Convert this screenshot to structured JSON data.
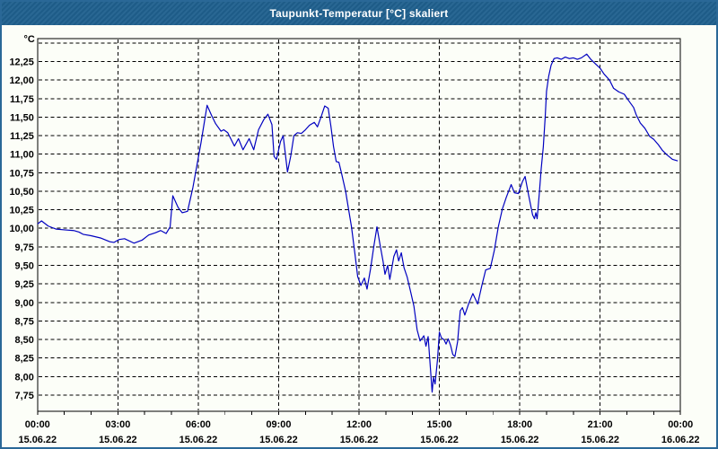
{
  "window": {
    "title": "Taupunkt-Temperatur [°C] skaliert"
  },
  "colors": {
    "title_bar_bg": "#20618F",
    "title_text": "#FFFFFF",
    "page_bg": "#FCFEF8",
    "outer_border": "#2A6897",
    "grid": "#000000",
    "frame": "#000000",
    "line": "#0000C0",
    "tick_text": "#000000"
  },
  "chart_data": {
    "type": "line",
    "title": "Taupunkt-Temperatur [°C] skaliert",
    "unit_label": "°C",
    "grid": "dashed",
    "legend": "none",
    "x_unit": "hours",
    "x_range": [
      0,
      24
    ],
    "y_range": [
      7.53,
      12.56
    ],
    "y_gridline_values": [
      12.5,
      12.25,
      12.0,
      11.75,
      11.5,
      11.25,
      11.0,
      10.75,
      10.5,
      10.25,
      10.0,
      9.75,
      9.5,
      9.25,
      9.0,
      8.75,
      8.5,
      8.25,
      8.0,
      7.75
    ],
    "y_tick_labels": [
      {
        "value": 12.25,
        "label": "12,25"
      },
      {
        "value": 12.0,
        "label": "12,00"
      },
      {
        "value": 11.75,
        "label": "11,75"
      },
      {
        "value": 11.5,
        "label": "11,50"
      },
      {
        "value": 11.25,
        "label": "11,25"
      },
      {
        "value": 11.0,
        "label": "11,00"
      },
      {
        "value": 10.75,
        "label": "10,75"
      },
      {
        "value": 10.5,
        "label": "10,50"
      },
      {
        "value": 10.25,
        "label": "10,25"
      },
      {
        "value": 10.0,
        "label": "10,00"
      },
      {
        "value": 9.75,
        "label": "9,75"
      },
      {
        "value": 9.5,
        "label": "9,50"
      },
      {
        "value": 9.25,
        "label": "9,25"
      },
      {
        "value": 9.0,
        "label": "9,00"
      },
      {
        "value": 8.75,
        "label": "8,75"
      },
      {
        "value": 8.5,
        "label": "8,50"
      },
      {
        "value": 8.25,
        "label": "8,25"
      },
      {
        "value": 8.0,
        "label": "8,00"
      },
      {
        "value": 7.75,
        "label": "7,75"
      }
    ],
    "x_major_gridlines_hours": [
      3,
      6,
      9,
      12,
      15,
      18,
      21
    ],
    "x_minor_tick_every_hours": 1,
    "x_tick_labels": [
      {
        "t": 0,
        "time": "00:00",
        "date": "15.06.22"
      },
      {
        "t": 3,
        "time": "03:00",
        "date": "15.06.22"
      },
      {
        "t": 6,
        "time": "06:00",
        "date": "15.06.22"
      },
      {
        "t": 9,
        "time": "09:00",
        "date": "15.06.22"
      },
      {
        "t": 12,
        "time": "12:00",
        "date": "15.06.22"
      },
      {
        "t": 15,
        "time": "15:00",
        "date": "15.06.22"
      },
      {
        "t": 18,
        "time": "18:00",
        "date": "15.06.22"
      },
      {
        "t": 21,
        "time": "21:00",
        "date": "15.06.22"
      },
      {
        "t": 24,
        "time": "00:00",
        "date": "16.06.22"
      }
    ],
    "series": [
      {
        "name": "Taupunkt-Temperatur",
        "color": "#0000C0",
        "points": [
          [
            0,
            10.06
          ],
          [
            0.15,
            10.1
          ],
          [
            0.4,
            10.03
          ],
          [
            0.7,
            9.99
          ],
          [
            1,
            9.98
          ],
          [
            1.35,
            9.97
          ],
          [
            1.55,
            9.95
          ],
          [
            1.7,
            9.92
          ],
          [
            2,
            9.9
          ],
          [
            2.35,
            9.87
          ],
          [
            2.7,
            9.82
          ],
          [
            2.85,
            9.81
          ],
          [
            3.05,
            9.85
          ],
          [
            3.25,
            9.86
          ],
          [
            3.6,
            9.8
          ],
          [
            3.9,
            9.84
          ],
          [
            4.15,
            9.91
          ],
          [
            4.4,
            9.94
          ],
          [
            4.6,
            9.97
          ],
          [
            4.8,
            9.93
          ],
          [
            4.95,
            10.02
          ],
          [
            5.05,
            10.44
          ],
          [
            5.25,
            10.28
          ],
          [
            5.4,
            10.21
          ],
          [
            5.6,
            10.23
          ],
          [
            5.8,
            10.55
          ],
          [
            5.95,
            10.85
          ],
          [
            6.1,
            11.15
          ],
          [
            6.33,
            11.66
          ],
          [
            6.5,
            11.52
          ],
          [
            6.65,
            11.41
          ],
          [
            6.85,
            11.31
          ],
          [
            6.95,
            11.33
          ],
          [
            7.1,
            11.29
          ],
          [
            7.35,
            11.11
          ],
          [
            7.5,
            11.21
          ],
          [
            7.67,
            11.06
          ],
          [
            7.9,
            11.21
          ],
          [
            8.07,
            11.06
          ],
          [
            8.25,
            11.33
          ],
          [
            8.45,
            11.47
          ],
          [
            8.6,
            11.54
          ],
          [
            8.75,
            11.4
          ],
          [
            8.83,
            10.97
          ],
          [
            8.92,
            10.93
          ],
          [
            9.07,
            11.17
          ],
          [
            9.17,
            11.25
          ],
          [
            9.33,
            10.76
          ],
          [
            9.45,
            10.97
          ],
          [
            9.57,
            11.25
          ],
          [
            9.7,
            11.29
          ],
          [
            9.85,
            11.28
          ],
          [
            10,
            11.33
          ],
          [
            10.15,
            11.39
          ],
          [
            10.33,
            11.43
          ],
          [
            10.45,
            11.37
          ],
          [
            10.6,
            11.52
          ],
          [
            10.72,
            11.65
          ],
          [
            10.85,
            11.62
          ],
          [
            10.95,
            11.38
          ],
          [
            11.05,
            11.1
          ],
          [
            11.15,
            10.9
          ],
          [
            11.25,
            10.89
          ],
          [
            11.35,
            10.74
          ],
          [
            11.5,
            10.5
          ],
          [
            11.6,
            10.28
          ],
          [
            11.72,
            10.02
          ],
          [
            11.85,
            9.65
          ],
          [
            11.95,
            9.35
          ],
          [
            12.07,
            9.23
          ],
          [
            12.2,
            9.33
          ],
          [
            12.3,
            9.18
          ],
          [
            12.43,
            9.45
          ],
          [
            12.55,
            9.75
          ],
          [
            12.67,
            10.02
          ],
          [
            12.78,
            9.79
          ],
          [
            12.9,
            9.55
          ],
          [
            12.97,
            9.38
          ],
          [
            13.07,
            9.5
          ],
          [
            13.15,
            9.31
          ],
          [
            13.3,
            9.62
          ],
          [
            13.4,
            9.71
          ],
          [
            13.48,
            9.56
          ],
          [
            13.58,
            9.67
          ],
          [
            13.68,
            9.47
          ],
          [
            13.8,
            9.34
          ],
          [
            13.93,
            9.14
          ],
          [
            14.05,
            8.95
          ],
          [
            14.17,
            8.63
          ],
          [
            14.28,
            8.48
          ],
          [
            14.42,
            8.55
          ],
          [
            14.5,
            8.41
          ],
          [
            14.58,
            8.54
          ],
          [
            14.67,
            8.09
          ],
          [
            14.73,
            7.79
          ],
          [
            14.78,
            7.99
          ],
          [
            14.84,
            7.9
          ],
          [
            14.93,
            8.23
          ],
          [
            15,
            8.6
          ],
          [
            15.08,
            8.52
          ],
          [
            15.17,
            8.5
          ],
          [
            15.25,
            8.44
          ],
          [
            15.33,
            8.51
          ],
          [
            15.42,
            8.42
          ],
          [
            15.5,
            8.3
          ],
          [
            15.58,
            8.27
          ],
          [
            15.68,
            8.47
          ],
          [
            15.78,
            8.89
          ],
          [
            15.86,
            8.93
          ],
          [
            15.95,
            8.83
          ],
          [
            16.1,
            8.99
          ],
          [
            16.25,
            9.12
          ],
          [
            16.43,
            8.98
          ],
          [
            16.58,
            9.22
          ],
          [
            16.73,
            9.44
          ],
          [
            16.9,
            9.46
          ],
          [
            17.05,
            9.7
          ],
          [
            17.2,
            10.02
          ],
          [
            17.35,
            10.26
          ],
          [
            17.5,
            10.42
          ],
          [
            17.68,
            10.59
          ],
          [
            17.8,
            10.48
          ],
          [
            17.95,
            10.47
          ],
          [
            18.1,
            10.63
          ],
          [
            18.2,
            10.7
          ],
          [
            18.33,
            10.45
          ],
          [
            18.48,
            10.18
          ],
          [
            18.55,
            10.13
          ],
          [
            18.6,
            10.21
          ],
          [
            18.65,
            10.13
          ],
          [
            18.73,
            10.47
          ],
          [
            18.8,
            10.8
          ],
          [
            18.88,
            11.1
          ],
          [
            18.95,
            11.5
          ],
          [
            19,
            11.85
          ],
          [
            19.08,
            12.05
          ],
          [
            19.17,
            12.2
          ],
          [
            19.28,
            12.29
          ],
          [
            19.4,
            12.3
          ],
          [
            19.55,
            12.28
          ],
          [
            19.7,
            12.31
          ],
          [
            19.85,
            12.29
          ],
          [
            20,
            12.3
          ],
          [
            20.15,
            12.28
          ],
          [
            20.3,
            12.3
          ],
          [
            20.5,
            12.35
          ],
          [
            20.65,
            12.28
          ],
          [
            20.85,
            12.21
          ],
          [
            21,
            12.16
          ],
          [
            21.15,
            12.08
          ],
          [
            21.35,
            12
          ],
          [
            21.5,
            11.89
          ],
          [
            21.7,
            11.84
          ],
          [
            21.9,
            11.81
          ],
          [
            22.05,
            11.73
          ],
          [
            22.25,
            11.63
          ],
          [
            22.35,
            11.53
          ],
          [
            22.5,
            11.42
          ],
          [
            22.67,
            11.35
          ],
          [
            22.85,
            11.24
          ],
          [
            23,
            11.2
          ],
          [
            23.17,
            11.13
          ],
          [
            23.33,
            11.05
          ],
          [
            23.5,
            10.99
          ],
          [
            23.7,
            10.93
          ],
          [
            23.9,
            10.91
          ]
        ]
      }
    ]
  }
}
